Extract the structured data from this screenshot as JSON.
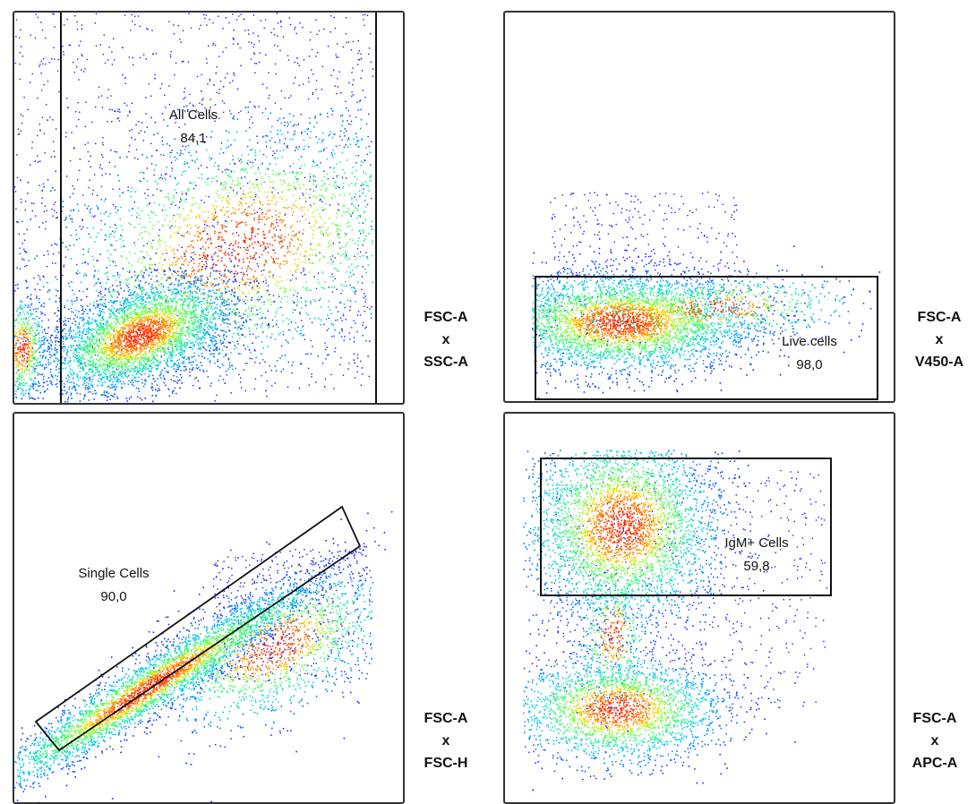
{
  "chart_data": [
    {
      "type": "scatter",
      "plot": "density-dot-plot",
      "axes": "FSC-A x SSC-A",
      "axis_label": {
        "x": "FSC-A",
        "sep": "x",
        "y": "SSC-A"
      },
      "gate": {
        "shape": "vertical-interval",
        "name": "All Cells",
        "percent": "84,1"
      }
    },
    {
      "type": "scatter",
      "plot": "density-dot-plot",
      "axes": "FSC-A x V450-A",
      "axis_label": {
        "x": "FSC-A",
        "sep": "x",
        "y": "V450-A"
      },
      "gate": {
        "shape": "rectangle",
        "name": "Live cells",
        "percent": "98,0"
      }
    },
    {
      "type": "scatter",
      "plot": "density-dot-plot",
      "axes": "FSC-A x FSC-H",
      "axis_label": {
        "x": "FSC-A",
        "sep": "x",
        "y": "FSC-H"
      },
      "gate": {
        "shape": "rotated-rectangle",
        "name": "Single Cells",
        "percent": "90,0"
      }
    },
    {
      "type": "scatter",
      "plot": "density-dot-plot",
      "axes": "FSC-A x APC-A",
      "axis_label": {
        "x": "FSC-A",
        "sep": "x",
        "y": "APC-A"
      },
      "gate": {
        "shape": "rectangle",
        "name": "IgM+ Cells",
        "percent": "59,8"
      }
    }
  ],
  "colors": {
    "density_low": "#1a1aff",
    "density_mid_low": "#00c8ff",
    "density_mid": "#44ff66",
    "density_high": "#ffee00",
    "density_peak": "#ff2200",
    "gate_line": "#111111"
  }
}
